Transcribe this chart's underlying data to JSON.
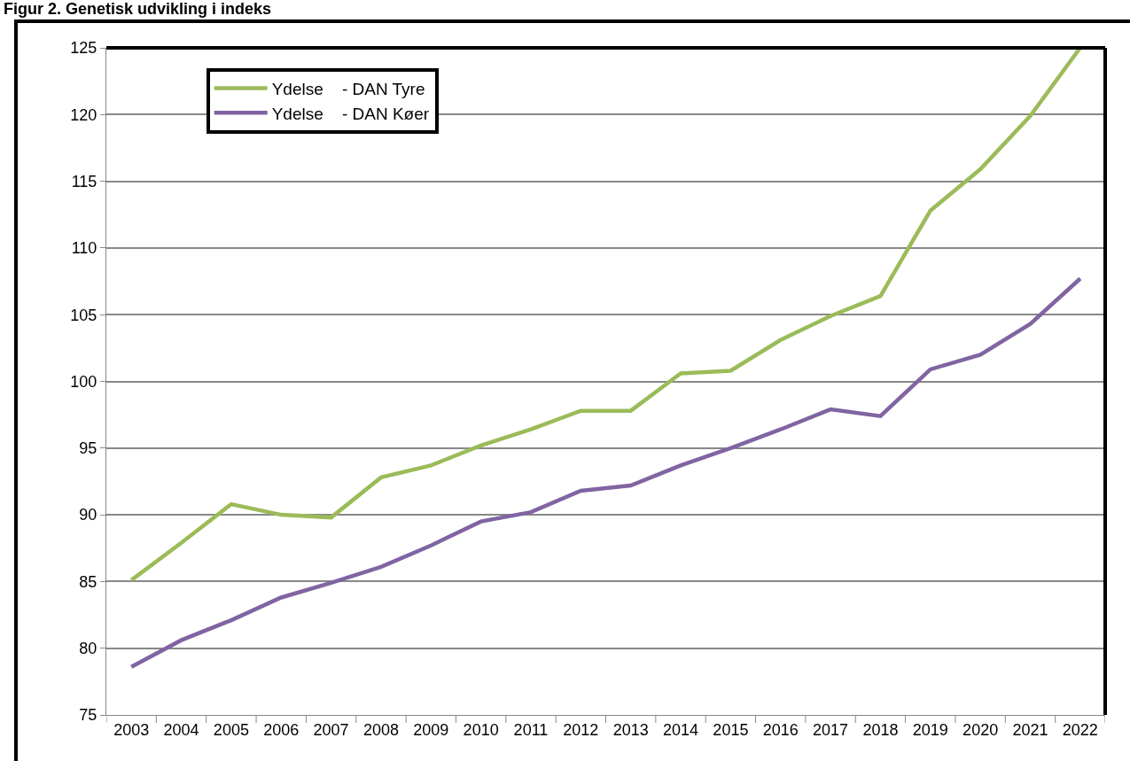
{
  "chart_data": {
    "type": "line",
    "title": "Figur 2. Genetisk udvikling i indeks",
    "categories": [
      "2003",
      "2004",
      "2005",
      "2006",
      "2007",
      "2008",
      "2009",
      "2010",
      "2011",
      "2012",
      "2013",
      "2014",
      "2015",
      "2016",
      "2017",
      "2018",
      "2019",
      "2020",
      "2021",
      "2022"
    ],
    "series": [
      {
        "name": "Ydelse    - DAN Tyre",
        "color": "#9bbb59",
        "values": [
          85.1,
          87.9,
          90.8,
          90.0,
          89.8,
          92.8,
          93.7,
          95.2,
          96.4,
          97.8,
          97.8,
          100.6,
          100.8,
          103.1,
          104.9,
          106.4,
          112.8,
          115.9,
          119.9,
          125.0
        ]
      },
      {
        "name": "Ydelse    - DAN Køer",
        "color": "#8064a2",
        "values": [
          78.6,
          80.6,
          82.1,
          83.8,
          84.9,
          86.1,
          87.7,
          89.5,
          90.2,
          91.8,
          92.2,
          93.7,
          95.0,
          96.4,
          97.9,
          97.4,
          100.9,
          102.0,
          104.3,
          107.7
        ]
      }
    ],
    "ylim": [
      75,
      125
    ],
    "yticks": [
      75,
      80,
      85,
      90,
      95,
      100,
      105,
      110,
      115,
      120,
      125
    ],
    "grid": "y",
    "legend": "top left",
    "marker": "none",
    "line_style": "solid"
  }
}
